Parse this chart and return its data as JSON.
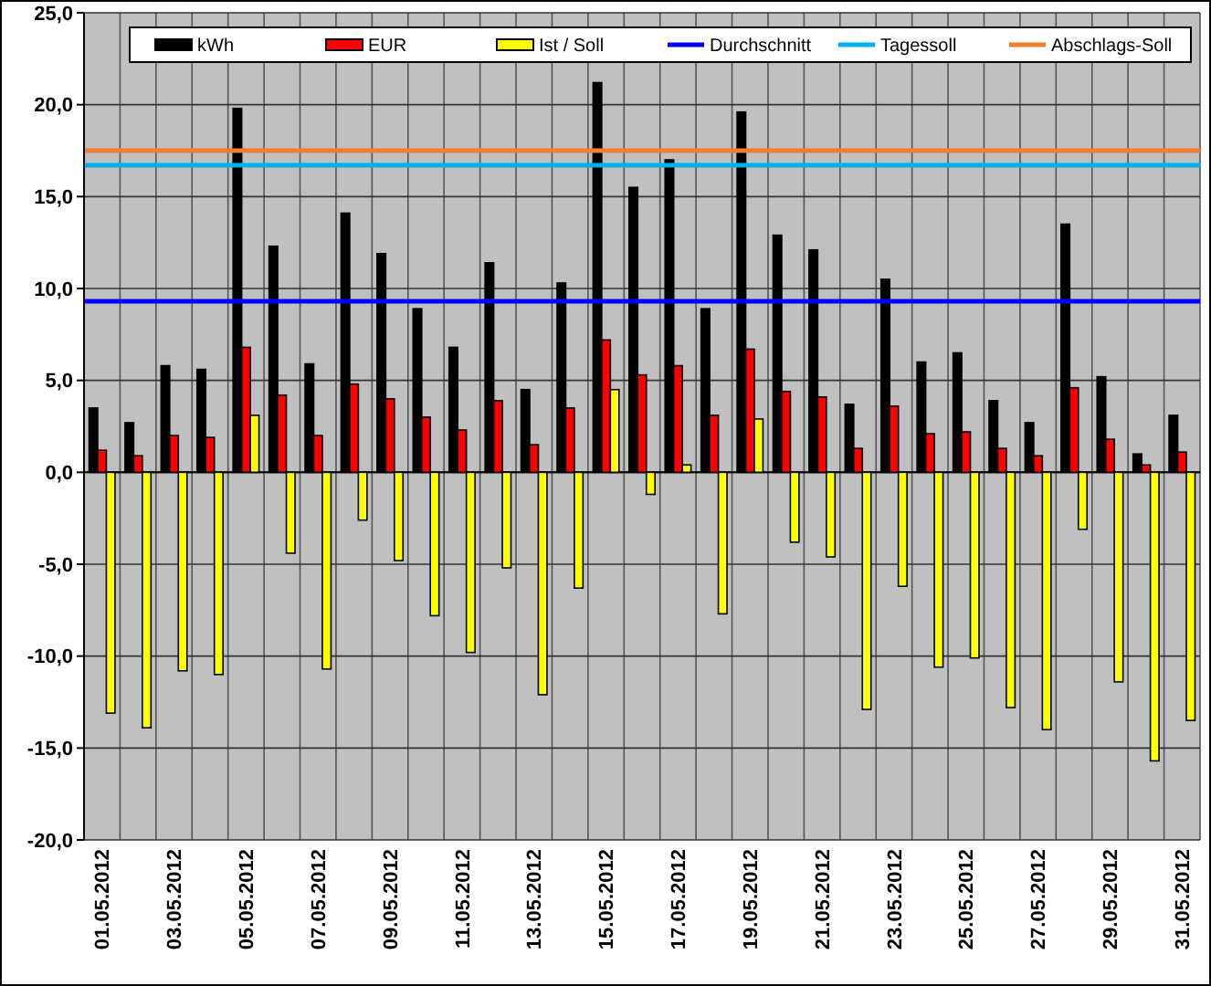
{
  "chart_data": {
    "type": "bar",
    "categories": [
      "01.05.2012",
      null,
      "03.05.2012",
      null,
      "05.05.2012",
      null,
      "07.05.2012",
      null,
      "09.05.2012",
      null,
      "11.05.2012",
      null,
      "13.05.2012",
      null,
      "15.05.2012",
      null,
      "17.05.2012",
      null,
      "19.05.2012",
      null,
      "21.05.2012",
      null,
      "23.05.2012",
      null,
      "25.05.2012",
      null,
      "27.05.2012",
      null,
      "29.05.2012",
      null,
      "31.05.2012"
    ],
    "series": [
      {
        "name": "kWh",
        "color": "#000000",
        "values": [
          3.5,
          2.7,
          5.8,
          5.6,
          19.8,
          12.3,
          5.9,
          14.1,
          11.9,
          8.9,
          6.8,
          11.4,
          4.5,
          10.3,
          21.2,
          15.5,
          17.0,
          8.9,
          19.6,
          12.9,
          12.1,
          3.7,
          10.5,
          6.0,
          6.5,
          3.9,
          2.7,
          13.5,
          5.2,
          1.0,
          3.1
        ]
      },
      {
        "name": "EUR",
        "color": "#ff0000",
        "values": [
          1.2,
          0.9,
          2.0,
          1.9,
          6.8,
          4.2,
          2.0,
          4.8,
          4.0,
          3.0,
          2.3,
          3.9,
          1.5,
          3.5,
          7.2,
          5.3,
          5.8,
          3.1,
          6.7,
          4.4,
          4.1,
          1.3,
          3.6,
          2.1,
          2.2,
          1.3,
          0.9,
          4.6,
          1.8,
          0.4,
          1.1
        ]
      },
      {
        "name": "Ist / Soll",
        "color": "#ffff00",
        "values": [
          -13.1,
          -13.9,
          -10.8,
          -11.0,
          3.1,
          -4.4,
          -10.7,
          -2.6,
          -4.8,
          -7.8,
          -9.8,
          -5.2,
          -12.1,
          -6.3,
          4.5,
          -1.2,
          0.4,
          -7.7,
          2.9,
          -3.8,
          -4.6,
          -12.9,
          -6.2,
          -10.6,
          -10.1,
          -12.8,
          -14.0,
          -3.1,
          -11.4,
          -15.7,
          -13.5
        ]
      }
    ],
    "ref_lines": [
      {
        "axis": "y",
        "value": 9.3,
        "label": "Durchschnitt",
        "color": "#0000ff"
      },
      {
        "axis": "y",
        "value": 16.7,
        "label": "Tagessoll",
        "color": "#00b0f0"
      },
      {
        "axis": "y",
        "value": 17.5,
        "label": "Abschlags-Soll",
        "color": "#f07f2c"
      }
    ],
    "ylim": [
      -20,
      25
    ],
    "yticks": [
      {
        "value": -20,
        "label": "-20,0"
      },
      {
        "value": -15,
        "label": "-15,0"
      },
      {
        "value": -10,
        "label": "-10,0"
      },
      {
        "value": -5,
        "label": "-5,0"
      },
      {
        "value": 0,
        "label": "0,0"
      },
      {
        "value": 5,
        "label": "5,0"
      },
      {
        "value": 10,
        "label": "10,0"
      },
      {
        "value": 15,
        "label": "15,0"
      },
      {
        "value": 20,
        "label": "20,0"
      },
      {
        "value": 25,
        "label": "25,0"
      }
    ],
    "grid": true,
    "legend": "top"
  }
}
